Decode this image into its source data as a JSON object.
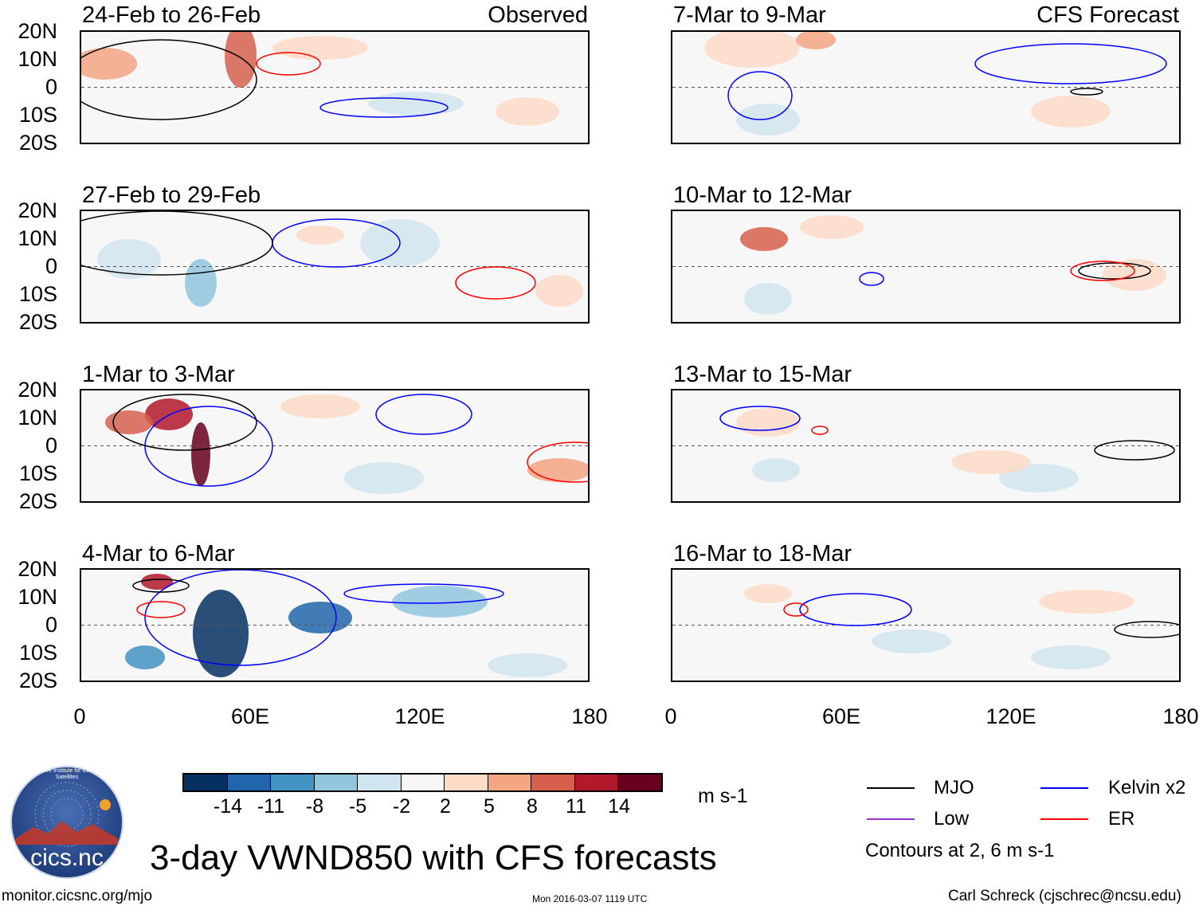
{
  "title": "3-day VWND850 with CFS forecasts",
  "left_column_label": "Observed",
  "right_column_label": "CFS Forecast",
  "panels_left": [
    {
      "dates": "24-Feb to 26-Feb"
    },
    {
      "dates": "27-Feb to 29-Feb"
    },
    {
      "dates": "1-Mar to 3-Mar"
    },
    {
      "dates": "4-Mar to 6-Mar"
    }
  ],
  "panels_right": [
    {
      "dates": "7-Mar to 9-Mar"
    },
    {
      "dates": "10-Mar to 12-Mar"
    },
    {
      "dates": "13-Mar to 15-Mar"
    },
    {
      "dates": "16-Mar to 18-Mar"
    }
  ],
  "lat_ticks": [
    "20N",
    "10N",
    "0",
    "10S",
    "20S"
  ],
  "lon_ticks": [
    "0",
    "60E",
    "120E",
    "180"
  ],
  "colorbar": {
    "labels": [
      "-14",
      "-11",
      "-8",
      "-5",
      "-2",
      "2",
      "5",
      "8",
      "11",
      "14"
    ],
    "colors": [
      "#053061",
      "#2166ac",
      "#4393c3",
      "#92c5de",
      "#d1e5f0",
      "#f7f7f7",
      "#fddbc7",
      "#f4a582",
      "#d6604d",
      "#b2182b",
      "#67001f"
    ],
    "units": "m s-1"
  },
  "legend": {
    "items": [
      {
        "label": "MJO",
        "color": "#000000"
      },
      {
        "label": "Kelvin x2",
        "color": "#0000ff"
      },
      {
        "label": "Low",
        "color": "#9932cc"
      },
      {
        "label": "ER",
        "color": "#ff0000"
      }
    ],
    "note": "Contours at 2, 6 m s-1"
  },
  "footer": {
    "site": "monitor.cicsnc.org/mjo",
    "timestamp": "Mon 2016-03-07 1119 UTC",
    "author": "Carl Schreck (cjschrec@ncsu.edu)"
  },
  "logo": {
    "text": "cics.nc",
    "ring_text": "Cooperative Institute for Climate and Satellites"
  }
}
